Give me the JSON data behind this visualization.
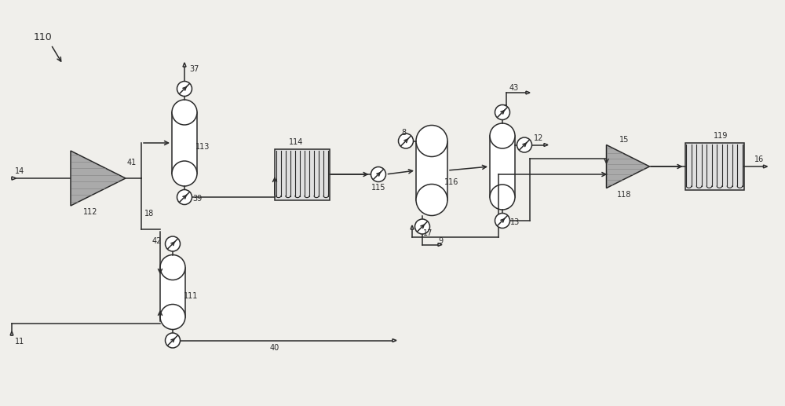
{
  "bg_color": "#f0efeb",
  "line_color": "#2a2a2a",
  "fill_color": "#ffffff",
  "gray_fill": "#aaaaaa",
  "coil_fill": "#e0e0e0",
  "fig_width": 10.0,
  "fig_height": 5.17,
  "dpi": 100,
  "xlim": [
    0,
    100
  ],
  "ylim": [
    0,
    51.7
  ]
}
